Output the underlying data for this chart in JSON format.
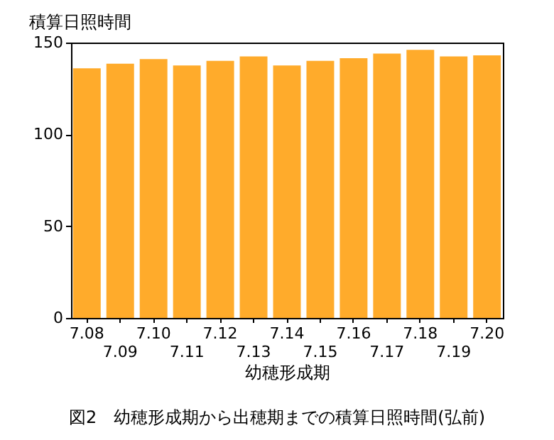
{
  "chart_data": {
    "type": "bar",
    "xlabel": "幼穂形成期",
    "ylabel": "積算日照時間",
    "categories": [
      "7.08",
      "7.09",
      "7.10",
      "7.11",
      "7.12",
      "7.13",
      "7.14",
      "7.15",
      "7.16",
      "7.17",
      "7.18",
      "7.19",
      "7.20"
    ],
    "values": [
      136,
      138.5,
      141,
      137.5,
      140,
      142.5,
      137.5,
      140,
      141.5,
      144,
      146,
      142.5,
      143
    ],
    "color": "#ffab2b",
    "ylim": [
      0,
      150
    ],
    "yticks": [
      0,
      50,
      100,
      150
    ],
    "grid": false,
    "annotations": [
      "図2　幼穂形成期から出穂期までの積算日照時間(弘前)"
    ]
  }
}
